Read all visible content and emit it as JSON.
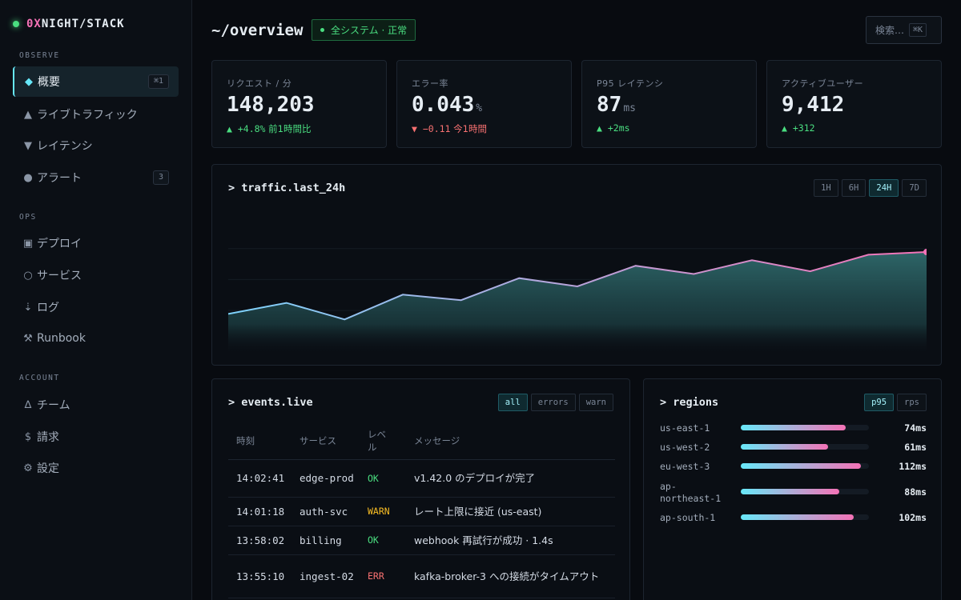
{
  "brand": {
    "accent": "0X",
    "rest": "NIGHT/STACK"
  },
  "sidebar": {
    "sections": [
      "OBSERVE",
      "OPS",
      "ACCOUNT"
    ],
    "items": [
      {
        "icon": "◆",
        "label": "概要",
        "kbd": "⌘1"
      },
      {
        "icon": "▲",
        "label": "ライブトラフィック"
      },
      {
        "icon": "▼",
        "label": "レイテンシ"
      },
      {
        "icon": "●",
        "label": "アラート",
        "badge": "3"
      },
      {
        "icon": "▣",
        "label": "デプロイ"
      },
      {
        "icon": "○",
        "label": "サービス"
      },
      {
        "icon": "⇣",
        "label": "ログ"
      },
      {
        "icon": "⚒",
        "label": "Runbook"
      },
      {
        "icon": "∆",
        "label": "チーム"
      },
      {
        "icon": "$",
        "label": "請求"
      },
      {
        "icon": "⚙",
        "label": "設定"
      }
    ]
  },
  "header": {
    "title": "~/overview",
    "status": "全システム · 正常",
    "search_label": "検索…",
    "search_kbd": "⌘K"
  },
  "stats": [
    {
      "label": "リクエスト / 分",
      "value": "148,203",
      "unit": "",
      "delta_num": "▲ +4.8%",
      "delta_text": "前1時間比",
      "dir": "up"
    },
    {
      "label": "エラー率",
      "value": "0.043",
      "unit": "%",
      "delta_num": "▼ −0.11",
      "delta_text": "今1時間",
      "dir": "down"
    },
    {
      "label": "P95 レイテンシ",
      "value": "87",
      "unit": "ms",
      "delta_num": "▲ +2ms",
      "delta_text": "",
      "dir": "up"
    },
    {
      "label": "アクティブユーザー",
      "value": "9,412",
      "unit": "",
      "delta_num": "▲ +312",
      "delta_text": "",
      "dir": "up"
    }
  ],
  "traffic": {
    "title": "> traffic.last_24h",
    "ranges": [
      "1H",
      "6H",
      "24H",
      "7D"
    ],
    "active_range": "24H"
  },
  "chart_data": {
    "type": "area",
    "title": "traffic.last_24h",
    "x": [
      0,
      1,
      2,
      3,
      4,
      5,
      6,
      7,
      8,
      9,
      10,
      11,
      12
    ],
    "values": [
      30,
      38,
      26,
      44,
      40,
      56,
      50,
      65,
      59,
      69,
      61,
      73,
      75
    ],
    "ylim": [
      0,
      100
    ],
    "grid": true,
    "xlabel": "",
    "ylabel": "",
    "colors": {
      "start": "#7dd3fc",
      "end": "#f472b6",
      "fill": "#2a5a5e"
    }
  },
  "events": {
    "title": "> events.live",
    "filters": [
      "all",
      "errors",
      "warn"
    ],
    "active_filter": "all",
    "columns": [
      "時刻",
      "サービス",
      "レベル",
      "メッセージ"
    ],
    "rows": [
      {
        "time": "14:02:41",
        "service": "edge-prod",
        "level": "OK",
        "message": "v1.42.0 のデプロイが完了"
      },
      {
        "time": "14:01:18",
        "service": "auth-svc",
        "level": "WARN",
        "message": "レート上限に接近 (us-east)"
      },
      {
        "time": "13:58:02",
        "service": "billing",
        "level": "OK",
        "message": "webhook 再試行が成功 · 1.4s"
      },
      {
        "time": "13:55:10",
        "service": "ingest-02",
        "level": "ERR",
        "message": "kafka-broker-3 への接続がタイムアウト"
      }
    ]
  },
  "regions": {
    "title": "> regions",
    "modes": [
      "p95",
      "rps"
    ],
    "active_mode": "p95",
    "rows": [
      {
        "name": "us-east-1",
        "value": "74ms",
        "fill": 0.82
      },
      {
        "name": "us-west-2",
        "value": "61ms",
        "fill": 0.68
      },
      {
        "name": "eu-west-3",
        "value": "112ms",
        "fill": 0.94
      },
      {
        "name": "ap-northeast-1",
        "value": "88ms",
        "fill": 0.77
      },
      {
        "name": "ap-south-1",
        "value": "102ms",
        "fill": 0.88
      }
    ]
  }
}
